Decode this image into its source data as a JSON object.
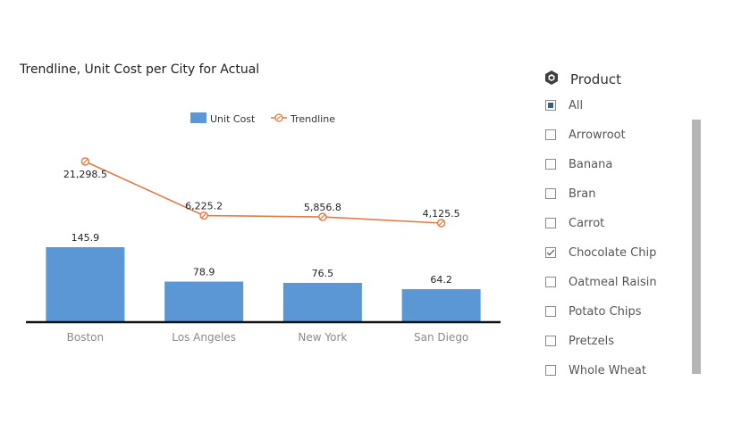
{
  "chart_data": {
    "type": "bar",
    "title": "Trendline, Unit Cost per City for Actual",
    "categories": [
      "Boston",
      "Los Angeles",
      "New York",
      "San Diego"
    ],
    "series": [
      {
        "name": "Unit Cost",
        "type": "bar",
        "values": [
          145.9,
          78.9,
          76.5,
          64.2
        ],
        "value_labels": [
          "145.9",
          "78.9",
          "76.5",
          "64.2"
        ],
        "color": "#5b96d5"
      },
      {
        "name": "Trendline",
        "type": "line",
        "values": [
          21298.5,
          6225.2,
          5856.8,
          4125.5
        ],
        "value_labels": [
          "21,298.5",
          "6,225.2",
          "5,856.8",
          "4,125.5"
        ],
        "color": "#e07a42"
      }
    ],
    "legend": "top-center",
    "grid": false
  },
  "filter": {
    "title": "Product",
    "icon": "cube-icon",
    "items": [
      {
        "label": "All",
        "state": "partial"
      },
      {
        "label": "Arrowroot",
        "state": "unchecked"
      },
      {
        "label": "Banana",
        "state": "unchecked"
      },
      {
        "label": "Bran",
        "state": "unchecked"
      },
      {
        "label": "Carrot",
        "state": "unchecked"
      },
      {
        "label": "Chocolate Chip",
        "state": "checked"
      },
      {
        "label": "Oatmeal Raisin",
        "state": "unchecked"
      },
      {
        "label": "Potato Chips",
        "state": "unchecked"
      },
      {
        "label": "Pretzels",
        "state": "unchecked"
      },
      {
        "label": "Whole Wheat",
        "state": "unchecked"
      }
    ]
  },
  "colors": {
    "bar": "#5b96d5",
    "line": "#e07a42",
    "axis": "#111111"
  }
}
